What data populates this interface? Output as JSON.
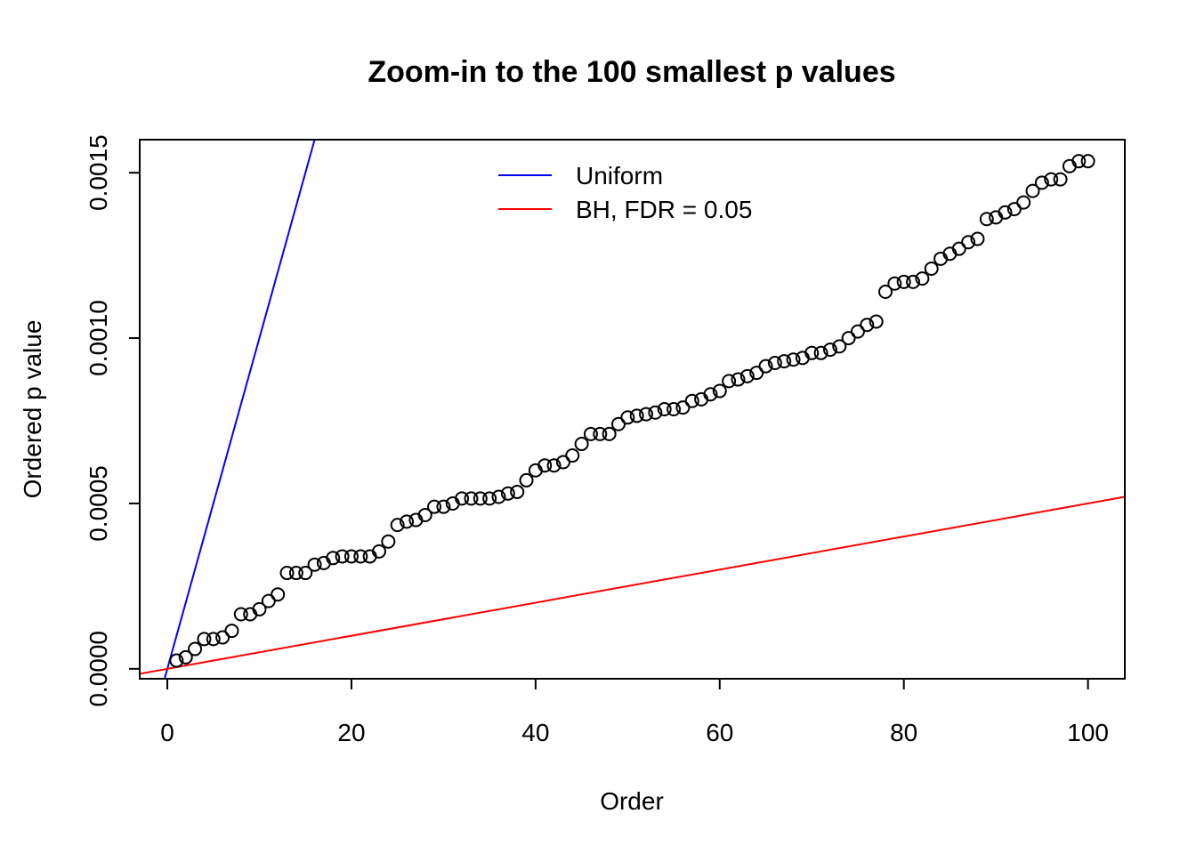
{
  "chart_data": {
    "type": "scatter",
    "title": "Zoom-in to the 100 smallest p values",
    "xlabel": "Order",
    "ylabel": "Ordered p value",
    "xlim": [
      -3,
      104
    ],
    "ylim": [
      -3e-05,
      0.0016
    ],
    "xticks": [
      0,
      20,
      40,
      60,
      80,
      100
    ],
    "xtick_labels": [
      "0",
      "20",
      "40",
      "60",
      "80",
      "100"
    ],
    "yticks": [
      0,
      0.0005,
      0.001,
      0.0015
    ],
    "ytick_labels": [
      "0.0000",
      "0.0005",
      "0.0010",
      "0.0015"
    ],
    "grid": false,
    "legend_position": "top-center",
    "series": [
      {
        "type": "points",
        "x": [
          1,
          2,
          3,
          4,
          5,
          6,
          7,
          8,
          9,
          10,
          11,
          12,
          13,
          14,
          15,
          16,
          17,
          18,
          19,
          20,
          21,
          22,
          23,
          24,
          25,
          26,
          27,
          28,
          29,
          30,
          31,
          32,
          33,
          34,
          35,
          36,
          37,
          38,
          39,
          40,
          41,
          42,
          43,
          44,
          45,
          46,
          47,
          48,
          49,
          50,
          51,
          52,
          53,
          54,
          55,
          56,
          57,
          58,
          59,
          60,
          61,
          62,
          63,
          64,
          65,
          66,
          67,
          68,
          69,
          70,
          71,
          72,
          73,
          74,
          75,
          76,
          77,
          78,
          79,
          80,
          81,
          82,
          83,
          84,
          85,
          86,
          87,
          88,
          89,
          90,
          91,
          92,
          93,
          94,
          95,
          96,
          97,
          98,
          99,
          100
        ],
        "y": [
          2.5e-05,
          3.5e-05,
          6e-05,
          9e-05,
          9e-05,
          9.5e-05,
          0.000115,
          0.000165,
          0.000165,
          0.00018,
          0.000205,
          0.000225,
          0.00029,
          0.00029,
          0.00029,
          0.000315,
          0.00032,
          0.000335,
          0.00034,
          0.00034,
          0.00034,
          0.00034,
          0.000355,
          0.000385,
          0.000435,
          0.000445,
          0.00045,
          0.000465,
          0.00049,
          0.00049,
          0.0005,
          0.000515,
          0.000515,
          0.000515,
          0.000515,
          0.00052,
          0.00053,
          0.000535,
          0.00057,
          0.0006,
          0.000615,
          0.000615,
          0.000625,
          0.000645,
          0.00068,
          0.00071,
          0.00071,
          0.00071,
          0.00074,
          0.00076,
          0.000765,
          0.00077,
          0.000775,
          0.000785,
          0.000785,
          0.00079,
          0.00081,
          0.000815,
          0.00083,
          0.00084,
          0.00087,
          0.000875,
          0.000885,
          0.000895,
          0.000915,
          0.000925,
          0.00093,
          0.000935,
          0.00094,
          0.000955,
          0.000955,
          0.000965,
          0.000975,
          0.001,
          0.00102,
          0.00104,
          0.00105,
          0.00114,
          0.001165,
          0.00117,
          0.00117,
          0.00118,
          0.00121,
          0.00124,
          0.001255,
          0.00127,
          0.00129,
          0.0013,
          0.00136,
          0.001365,
          0.00138,
          0.00139,
          0.00141,
          0.001445,
          0.00147,
          0.00148,
          0.00148,
          0.00152,
          0.001535,
          0.001535
        ]
      },
      {
        "type": "line",
        "name": "Uniform",
        "color": "#0000ff",
        "intercept": 0,
        "slope": 0.0001
      },
      {
        "type": "line",
        "name": "BH, FDR = 0.05",
        "color": "#ff0000",
        "intercept": 0,
        "slope": 5e-06
      }
    ]
  }
}
